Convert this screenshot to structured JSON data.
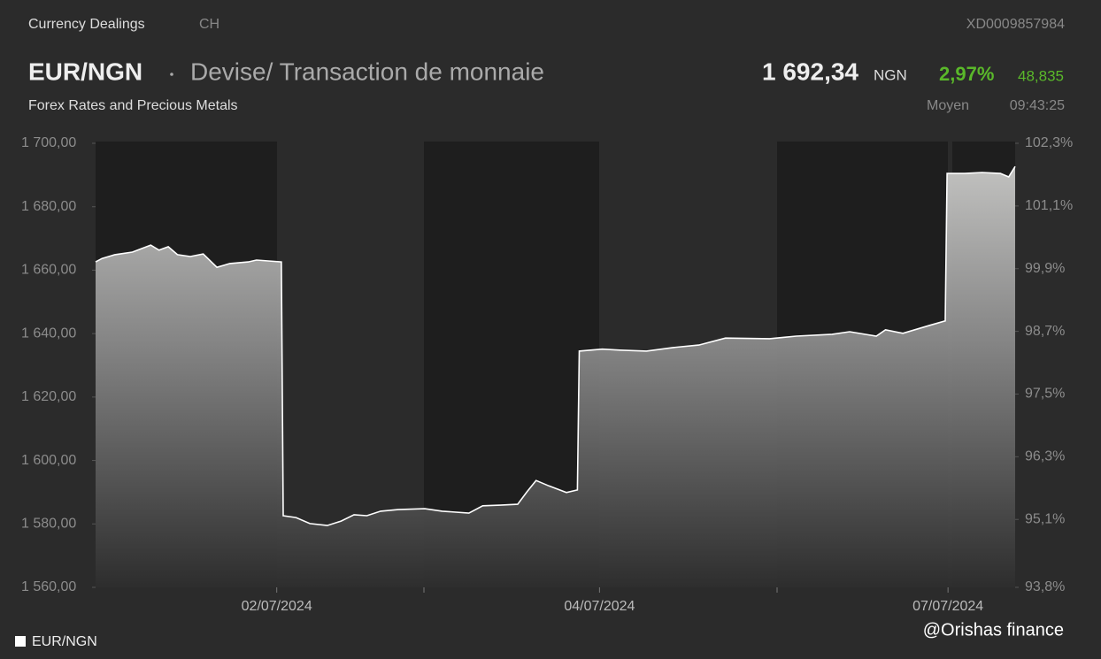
{
  "header": {
    "category": "Currency Dealings",
    "country": "CH",
    "isin": "XD0009857984",
    "symbol": "EUR/NGN",
    "description": "Devise/ Transaction de monnaie",
    "price": "1 692,34",
    "currency": "NGN",
    "change_pct": "2,97%",
    "change_abs": "48,835",
    "group": "Forex Rates and Precious Metals",
    "price_type": "Moyen",
    "time": "09:43:25"
  },
  "watermark": "@Orishas finance",
  "chart_data": {
    "type": "area",
    "x": [
      0,
      0.7,
      2.1,
      4.0,
      6.0,
      6.9,
      7.9,
      8.9,
      10.3,
      11.7,
      13.2,
      14.6,
      16.6,
      17.5,
      20.2,
      20.4,
      21.8,
      23.3,
      25.2,
      26.7,
      28.1,
      29.5,
      31.0,
      32.9,
      35.8,
      37.7,
      40.6,
      42.1,
      44.0,
      45.9,
      46.9,
      47.9,
      49.3,
      51.2,
      52.4,
      52.6,
      55.1,
      57.0,
      59.9,
      62.8,
      65.6,
      68.5,
      73.3,
      76.2,
      80.1,
      82.0,
      84.9,
      85.9,
      87.8,
      90.7,
      92.4,
      92.6,
      94.5,
      96.4,
      98.4,
      99.3,
      100
    ],
    "series": [
      {
        "name": "EUR/NGN",
        "color": "#ffffff",
        "values": [
          1662.6,
          1663.7,
          1664.9,
          1665.7,
          1667.9,
          1666.3,
          1667.4,
          1664.9,
          1664.3,
          1665.1,
          1660.9,
          1662.1,
          1662.6,
          1663.2,
          1662.6,
          1582.6,
          1582.0,
          1580.1,
          1579.5,
          1580.9,
          1582.9,
          1582.6,
          1584.0,
          1584.5,
          1584.8,
          1584.0,
          1583.4,
          1585.7,
          1585.9,
          1586.2,
          1590.1,
          1593.7,
          1592.0,
          1589.9,
          1590.7,
          1634.5,
          1635.1,
          1634.8,
          1634.5,
          1635.6,
          1636.4,
          1638.6,
          1638.4,
          1639.2,
          1639.8,
          1640.6,
          1639.2,
          1641.2,
          1640.1,
          1642.6,
          1644.0,
          1690.5,
          1690.5,
          1690.8,
          1690.5,
          1689.4,
          1692.7
        ]
      }
    ],
    "xlim": [
      0,
      100
    ],
    "xticks": [
      {
        "value": 19.7,
        "label": "02/07/2024"
      },
      {
        "value": 54.8,
        "label": "04/07/2024"
      },
      {
        "value": 92.7,
        "label": "07/07/2024"
      }
    ],
    "ylim": [
      1560,
      1700
    ],
    "yticks": [
      {
        "value": 1560,
        "label": "1 560,00"
      },
      {
        "value": 1580,
        "label": "1 580,00"
      },
      {
        "value": 1600,
        "label": "1 600,00"
      },
      {
        "value": 1620,
        "label": "1 620,00"
      },
      {
        "value": 1640,
        "label": "1 640,00"
      },
      {
        "value": 1660,
        "label": "1 660,00"
      },
      {
        "value": 1680,
        "label": "1 680,00"
      },
      {
        "value": 1700,
        "label": "1 700,00"
      }
    ],
    "y2lim": [
      93.8,
      102.3
    ],
    "y2ticks": [
      {
        "value": 93.8,
        "label": "93,8%"
      },
      {
        "value": 95.1,
        "label": "95,1%"
      },
      {
        "value": 96.3,
        "label": "96,3%"
      },
      {
        "value": 97.5,
        "label": "97,5%"
      },
      {
        "value": 98.7,
        "label": "98,7%"
      },
      {
        "value": 99.9,
        "label": "99,9%"
      },
      {
        "value": 101.1,
        "label": "101,1%"
      },
      {
        "value": 102.3,
        "label": "102,3%"
      }
    ]
  }
}
